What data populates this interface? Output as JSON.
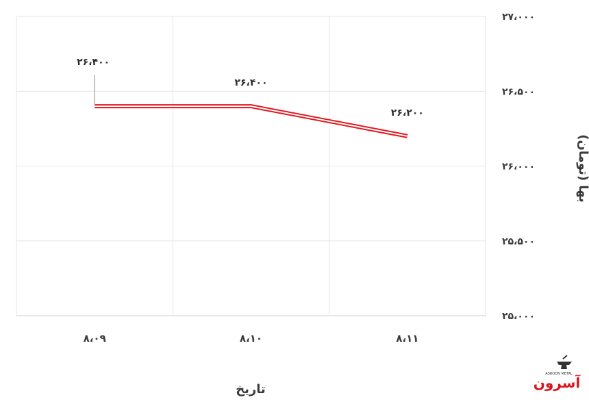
{
  "chart_data": {
    "type": "line",
    "categories": [
      "۸،۰۹",
      "۸،۱۰",
      "۸،۱۱"
    ],
    "series": [
      {
        "values": [
          26400,
          26400,
          26200
        ],
        "color": "#e3161b"
      }
    ],
    "data_labels": [
      "۲۶،۴۰۰",
      "۲۶،۴۰۰",
      "۲۶،۲۰۰"
    ],
    "y_ticks": [
      25000,
      25500,
      26000,
      26500,
      27000
    ],
    "y_tick_labels": [
      "۲۵،۰۰۰",
      "۲۵،۵۰۰",
      "۲۶،۰۰۰",
      "۲۶،۵۰۰",
      "۲۷،۰۰۰"
    ],
    "ylim": [
      25000,
      27000
    ],
    "xlabel": "تاریخ",
    "ylabel": "بها (تومان)",
    "grid": true,
    "y_axis_position": "right"
  },
  "logo": {
    "brand": "آسرون",
    "sub": "ASROON METAL"
  }
}
